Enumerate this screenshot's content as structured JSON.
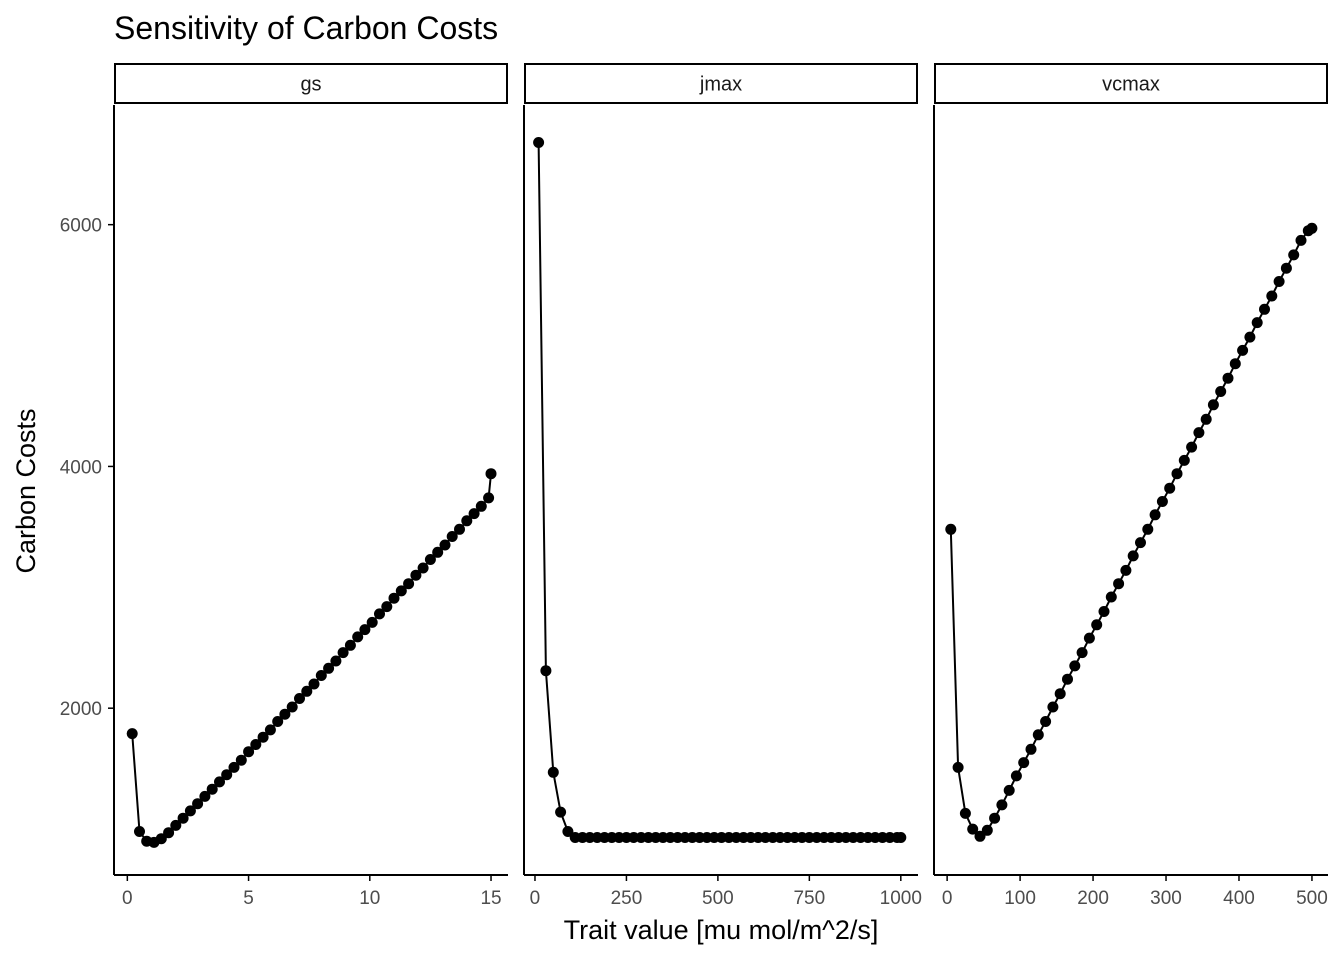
{
  "chart_data": {
    "type": "line",
    "title": "Sensitivity of Carbon Costs",
    "xlabel": "Trait value [mu mol/m^2/s]",
    "ylabel": "Carbon Costs",
    "ylim": [
      620,
      6990
    ],
    "yticks": [
      2000,
      4000,
      6000
    ],
    "grid": false,
    "legend": "none",
    "markers": true,
    "colors": {
      "series": "#000000",
      "axis": "#000000",
      "tick_text": "#4d4d4d"
    },
    "panels": [
      {
        "name": "gs",
        "xlim": [
          -0.55,
          15.7
        ],
        "xticks": [
          0,
          5,
          10,
          15
        ],
        "x": [
          0.2,
          0.5,
          0.8,
          1.1,
          1.4,
          1.7,
          2.0,
          2.3,
          2.6,
          2.9,
          3.2,
          3.5,
          3.8,
          4.1,
          4.4,
          4.7,
          5.0,
          5.3,
          5.6,
          5.9,
          6.2,
          6.5,
          6.8,
          7.1,
          7.4,
          7.7,
          8.0,
          8.3,
          8.6,
          8.9,
          9.2,
          9.5,
          9.8,
          10.1,
          10.4,
          10.7,
          11.0,
          11.3,
          11.6,
          11.9,
          12.2,
          12.5,
          12.8,
          13.1,
          13.4,
          13.7,
          14.0,
          14.3,
          14.6,
          14.9,
          15.0
        ],
        "y": [
          1790,
          980,
          900,
          890,
          920,
          970,
          1030,
          1090,
          1150,
          1210,
          1270,
          1330,
          1390,
          1450,
          1510,
          1570,
          1640,
          1700,
          1760,
          1820,
          1890,
          1950,
          2010,
          2080,
          2140,
          2200,
          2270,
          2330,
          2390,
          2460,
          2520,
          2590,
          2650,
          2710,
          2780,
          2840,
          2910,
          2970,
          3030,
          3100,
          3160,
          3230,
          3290,
          3350,
          3420,
          3480,
          3550,
          3610,
          3670,
          3740,
          3940
        ]
      },
      {
        "name": "jmax",
        "xlim": [
          -30,
          1047
        ],
        "xticks": [
          0,
          250,
          500,
          750,
          1000
        ],
        "x": [
          10,
          30,
          50,
          70,
          90,
          110,
          130,
          150,
          170,
          190,
          210,
          230,
          250,
          270,
          290,
          310,
          330,
          350,
          370,
          390,
          410,
          430,
          450,
          470,
          490,
          510,
          530,
          550,
          570,
          590,
          610,
          630,
          650,
          670,
          690,
          710,
          730,
          750,
          770,
          790,
          810,
          830,
          850,
          870,
          890,
          910,
          930,
          950,
          970,
          990,
          1000
        ],
        "y": [
          6680,
          2310,
          1470,
          1140,
          980,
          930,
          930,
          930,
          930,
          930,
          930,
          930,
          930,
          930,
          930,
          930,
          930,
          930,
          930,
          930,
          930,
          930,
          930,
          930,
          930,
          930,
          930,
          930,
          930,
          930,
          930,
          930,
          930,
          930,
          930,
          930,
          930,
          930,
          930,
          930,
          930,
          930,
          930,
          930,
          930,
          930,
          930,
          930,
          930,
          930,
          930
        ]
      },
      {
        "name": "vcmax",
        "xlim": [
          -18,
          522
        ],
        "xticks": [
          0,
          100,
          200,
          300,
          400,
          500
        ],
        "yticks": [],
        "x": [
          5,
          15,
          25,
          35,
          45,
          55,
          65,
          75,
          85,
          95,
          105,
          115,
          125,
          135,
          145,
          155,
          165,
          175,
          185,
          195,
          205,
          215,
          225,
          235,
          245,
          255,
          265,
          275,
          285,
          295,
          305,
          315,
          325,
          335,
          345,
          355,
          365,
          375,
          385,
          395,
          405,
          415,
          425,
          435,
          445,
          455,
          465,
          475,
          485,
          495,
          500
        ],
        "y": [
          3480,
          1510,
          1130,
          1000,
          940,
          990,
          1090,
          1200,
          1320,
          1440,
          1550,
          1660,
          1780,
          1890,
          2010,
          2120,
          2240,
          2350,
          2460,
          2580,
          2690,
          2800,
          2920,
          3030,
          3140,
          3260,
          3370,
          3480,
          3600,
          3710,
          3820,
          3940,
          4050,
          4160,
          4280,
          4390,
          4510,
          4620,
          4730,
          4850,
          4960,
          5070,
          5190,
          5300,
          5410,
          5530,
          5640,
          5750,
          5870,
          5950,
          5970
        ]
      }
    ]
  }
}
